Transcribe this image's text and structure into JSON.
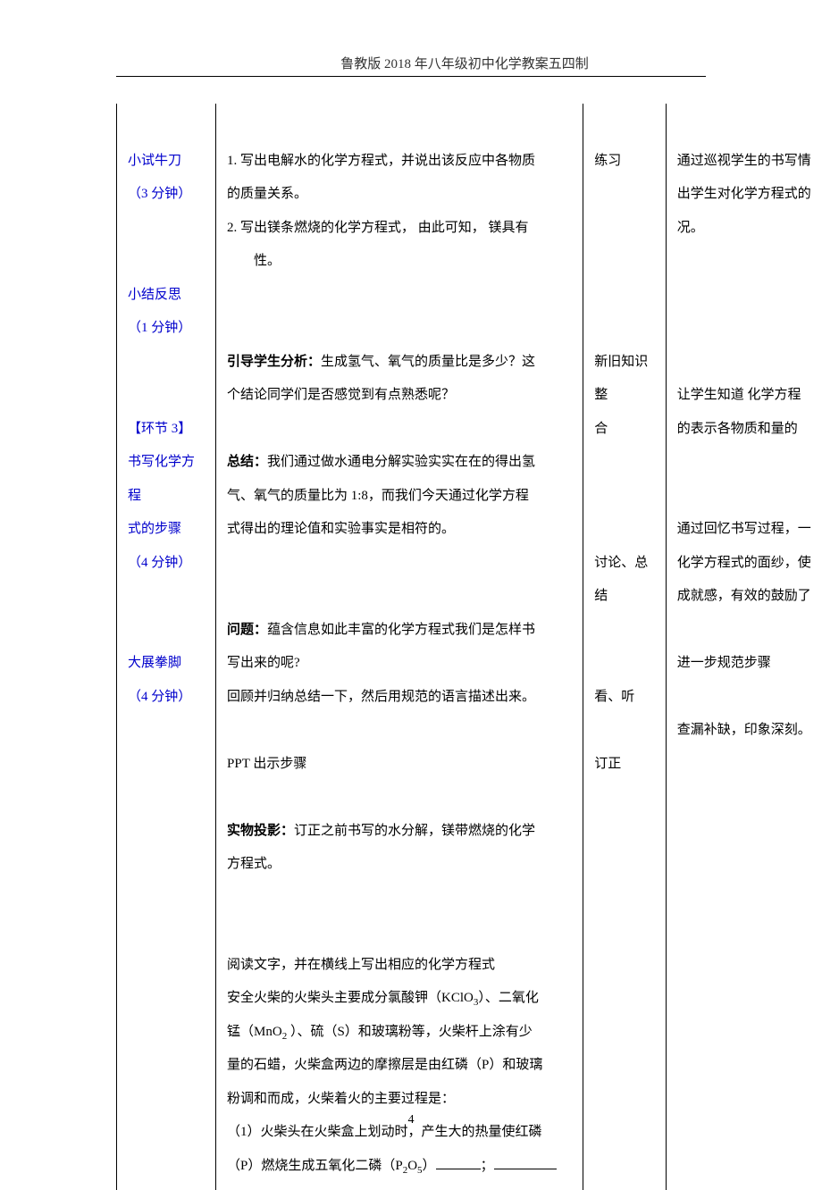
{
  "header": {
    "title": "鲁教版 2018 年八年级初中化学教案五四制"
  },
  "rows": [
    {
      "col1": [
        {
          "text": "",
          "cls": ""
        },
        {
          "text": "小试牛刀",
          "cls": "label-blue"
        },
        {
          "text": "（3 分钟）",
          "cls": "label-blue"
        }
      ],
      "col2": [
        {
          "text": ""
        },
        {
          "text": "1. 写出电解水的化学方程式，并说出该反应中各物质"
        },
        {
          "text": "的质量关系。"
        },
        {
          "text": "2. 写出镁条燃烧的化学方程式， 由此可知， 镁具有"
        },
        {
          "text": "性。",
          "indent": true
        }
      ],
      "col3": [
        {
          "text": ""
        },
        {
          "text": "练习"
        }
      ],
      "col4": [
        {
          "text": ""
        },
        {
          "text": "通过巡视学生的书写情"
        },
        {
          "text": "出学生对化学方程式的"
        },
        {
          "text": "况。"
        }
      ]
    },
    {
      "col1": [
        {
          "text": "小结反思",
          "cls": "label-blue"
        },
        {
          "text": "（1 分钟）",
          "cls": "label-blue"
        }
      ],
      "col2": [
        {
          "bold": "引导学生分析：",
          "text": "生成氢气、氧气的质量比是多少？这"
        },
        {
          "text": "个结论同学们是否感觉到有点熟悉呢？"
        },
        {
          "text": ""
        },
        {
          "bold": "总结：",
          "text": "我们通过做水通电分解实验实实在在的得出氢"
        },
        {
          "text": "气、氧气的质量比为 1:8，而我们今天通过化学方程"
        },
        {
          "text": "式得出的理论值和实验事实是相符的。"
        }
      ],
      "col3": [
        {
          "text": ""
        },
        {
          "text": ""
        },
        {
          "text": ""
        },
        {
          "text": "新旧知识整"
        },
        {
          "text": "合"
        }
      ],
      "col4": [
        {
          "text": ""
        },
        {
          "text": ""
        },
        {
          "text": "让学生知道 化学方程"
        },
        {
          "text": "的表示各物质和量的"
        }
      ]
    },
    {
      "col1": [
        {
          "text": "【环节 3】",
          "cls": "label-blue bold"
        },
        {
          "text": "书写化学方程",
          "cls": "label-blue bold"
        },
        {
          "text": "式的步骤",
          "cls": "label-blue bold"
        },
        {
          "text": "（4 分钟）",
          "cls": "label-blue"
        }
      ],
      "col2": [
        {
          "bold": "问题：",
          "text": "蕴含信息如此丰富的化学方程式我们是怎样书"
        },
        {
          "text": "写出来的呢?"
        },
        {
          "text": "回顾并归纳总结一下，然后用规范的语言描述出来。"
        },
        {
          "text": ""
        },
        {
          "text": "PPT 出示步骤"
        },
        {
          "text": ""
        },
        {
          "bold": "实物投影：",
          "text": "订正之前书写的水分解，镁带燃烧的化学"
        },
        {
          "text": "方程式。"
        }
      ],
      "col3": [
        {
          "text": ""
        },
        {
          "text": "讨论、总结"
        },
        {
          "text": ""
        },
        {
          "text": ""
        },
        {
          "text": "看、听"
        },
        {
          "text": ""
        },
        {
          "text": "订正"
        }
      ],
      "col4": [
        {
          "text": "通过回忆书写过程，一"
        },
        {
          "text": "化学方程式的面纱，使"
        },
        {
          "text": "成就感，有效的鼓励了"
        },
        {
          "text": ""
        },
        {
          "text": "进一步规范步骤"
        },
        {
          "text": ""
        },
        {
          "text": "查漏补缺，印象深刻。"
        }
      ]
    },
    {
      "col1": [
        {
          "text": "大展拳脚",
          "cls": "label-blue bold"
        },
        {
          "text": "（4 分钟）",
          "cls": "label-blue"
        }
      ],
      "col2": [
        {
          "text": "阅读文字，并在横线上写出相应的化学方程式"
        },
        {
          "html": "安全火柴的火柴头主要成分氯酸钾（KClO<sub>3</sub>）、二氧化"
        },
        {
          "html": "锰（MnO<sub>2</sub>  ）、硫（S）和玻璃粉等，火柴杆上涂有少"
        },
        {
          "text": "量的石蜡，火柴盒两边的摩擦层是由红磷（P）和玻璃"
        },
        {
          "text": "粉调和而成，火柴着火的主要过程是："
        },
        {
          "text": "（1）火柴头在火柴盒上划动时，产生大的热量使红磷"
        },
        {
          "html": "（P）燃烧生成五氧化二磷（P<sub>2</sub>O<sub>5</sub>）<span class='underline-blank'></span>；<span class='underline-blank-short'></span>"
        }
      ],
      "col3": [],
      "col4": []
    }
  ],
  "footer": {
    "page_number": "4"
  }
}
